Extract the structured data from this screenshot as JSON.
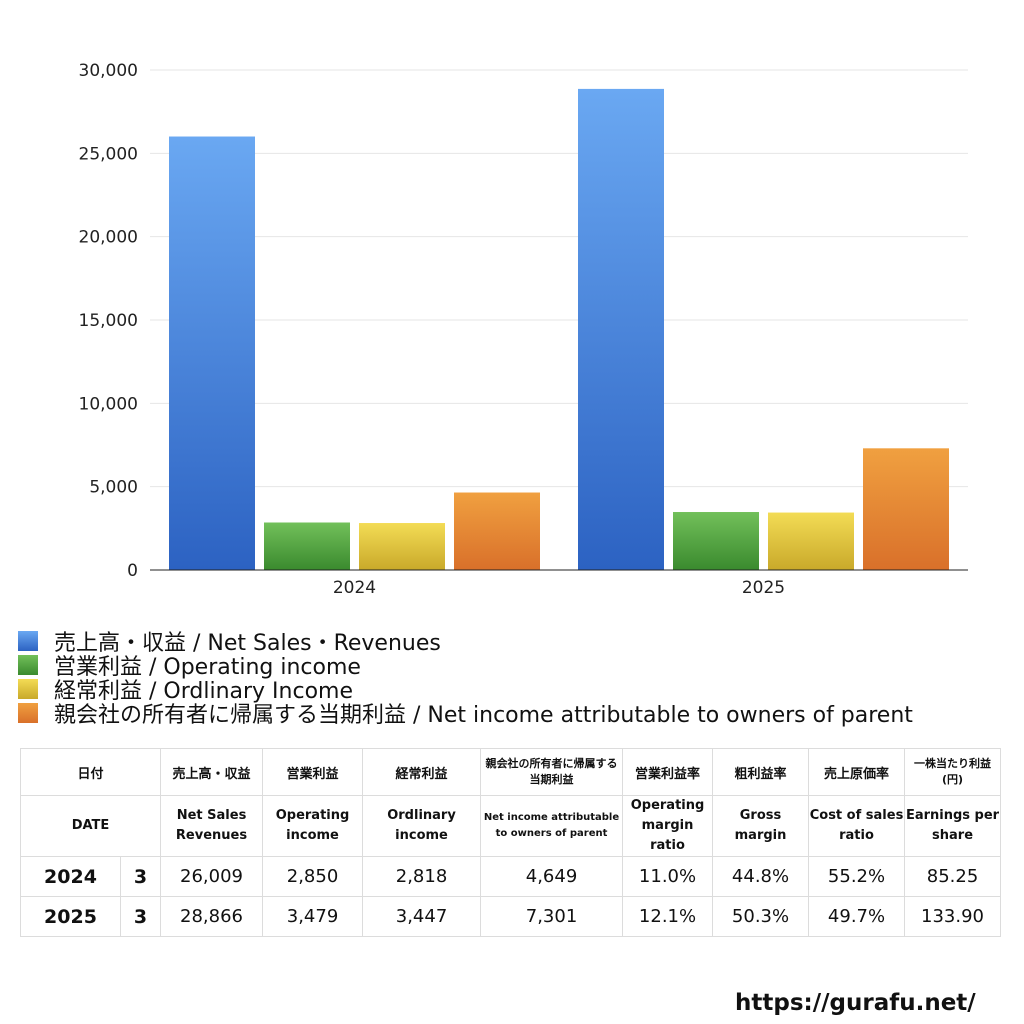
{
  "chart_data": {
    "type": "bar",
    "categories": [
      "2024",
      "2025"
    ],
    "series": [
      {
        "name": "売上高・収益 / Net Sales・Revenues",
        "values": [
          26009,
          28866
        ]
      },
      {
        "name": "営業利益 / Operating income",
        "values": [
          2850,
          3479
        ]
      },
      {
        "name": "経常利益 / Ordlinary Income",
        "values": [
          2818,
          3447
        ]
      },
      {
        "name": "親会社の所有者に帰属する当期利益 / Net income attributable to owners of parent",
        "values": [
          4649,
          7301
        ]
      }
    ],
    "colors": [
      "#3f7fdc",
      "#4fa33f",
      "#e0c53a",
      "#e58a35"
    ],
    "ylim": [
      0,
      30000
    ],
    "yticks": [
      0,
      5000,
      10000,
      15000,
      20000,
      25000,
      30000
    ],
    "ytick_labels": [
      "0",
      "5,000",
      "10,000",
      "15,000",
      "20,000",
      "25,000",
      "30,000"
    ],
    "grid": true,
    "legend_position": "bottom"
  },
  "table": {
    "headers_jp": [
      "日付",
      "売上高・収益",
      "営業利益",
      "経常利益",
      "親会社の所有者に帰属する当期利益",
      "営業利益率",
      "粗利益率",
      "売上原価率",
      "一株当たり利益(円)"
    ],
    "headers_en": [
      "DATE",
      "Net Sales Revenues",
      "Operating income",
      "Ordlinary income",
      "Net income attributable to owners of parent",
      "Operating margin ratio",
      "Gross margin",
      "Cost of sales ratio",
      "Earnings per share"
    ],
    "rows": [
      {
        "year": "2024",
        "month": "3",
        "sales": "26,009",
        "op": "2,850",
        "ord": "2,818",
        "net": "4,649",
        "op_ratio": "11.0%",
        "gross": "44.8%",
        "cost": "55.2%",
        "eps": "85.25"
      },
      {
        "year": "2025",
        "month": "3",
        "sales": "28,866",
        "op": "3,479",
        "ord": "3,447",
        "net": "7,301",
        "op_ratio": "12.1%",
        "gross": "50.3%",
        "cost": "49.7%",
        "eps": "133.90"
      }
    ]
  },
  "footer": {
    "url": "https://gurafu.net/"
  }
}
